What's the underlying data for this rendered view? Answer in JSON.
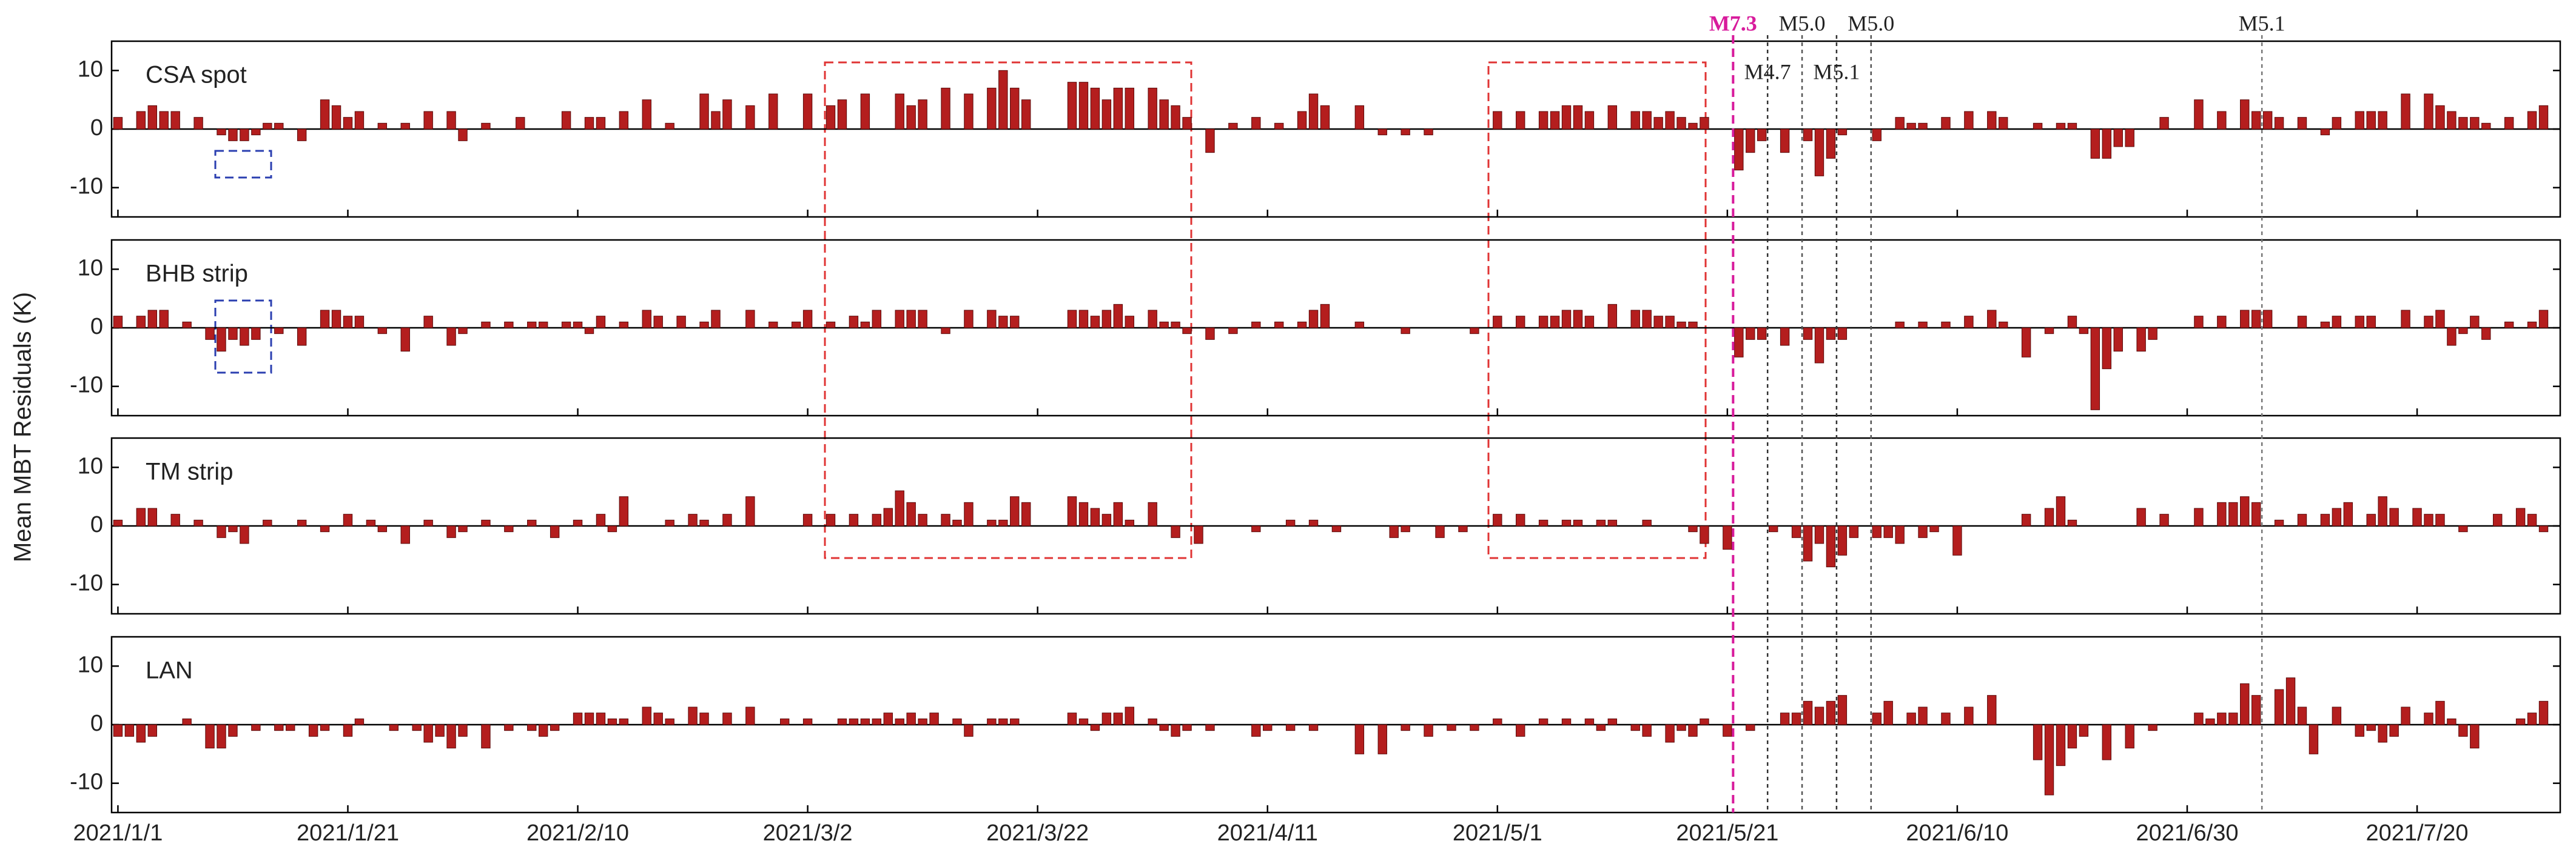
{
  "chart_data": {
    "type": "bar",
    "ylabel": "Mean MBT Residuals (K)",
    "ylim": [
      -15,
      15
    ],
    "yticks": [
      -10,
      0,
      10
    ],
    "categories": [
      "2021/1/1",
      null,
      null,
      null,
      null,
      null,
      null,
      null,
      null,
      null,
      null,
      null,
      null,
      null,
      null,
      null,
      null,
      null,
      null,
      null,
      "2021/1/21",
      null,
      null,
      null,
      null,
      null,
      null,
      null,
      null,
      null,
      null,
      null,
      null,
      null,
      null,
      null,
      null,
      null,
      null,
      null,
      "2021/2/10",
      null,
      null,
      null,
      null,
      null,
      null,
      null,
      null,
      null,
      null,
      null,
      null,
      null,
      null,
      null,
      null,
      null,
      null,
      null,
      "2021/3/2",
      null,
      null,
      null,
      null,
      null,
      null,
      null,
      null,
      null,
      null,
      null,
      null,
      null,
      null,
      null,
      null,
      null,
      null,
      null,
      "2021/3/22",
      null,
      null,
      null,
      null,
      null,
      null,
      null,
      null,
      null,
      null,
      null,
      null,
      null,
      null,
      null,
      null,
      null,
      null,
      null,
      "2021/4/11",
      null,
      null,
      null,
      null,
      null,
      null,
      null,
      null,
      null,
      null,
      null,
      null,
      null,
      null,
      null,
      null,
      null,
      null,
      null,
      "2021/5/1",
      null,
      null,
      null,
      null,
      null,
      null,
      null,
      null,
      null,
      null,
      null,
      null,
      null,
      null,
      null,
      null,
      null,
      null,
      null,
      "2021/5/21",
      null,
      null,
      null,
      null,
      null,
      null,
      null,
      null,
      null,
      null,
      null,
      null,
      null,
      null,
      null,
      null,
      null,
      null,
      null,
      "2021/6/10",
      null,
      null,
      null,
      null,
      null,
      null,
      null,
      null,
      null,
      null,
      null,
      null,
      null,
      null,
      null,
      null,
      null,
      null,
      null,
      "2021/6/30",
      null,
      null,
      null,
      null,
      null,
      null,
      null,
      null,
      null,
      null,
      null,
      null,
      null,
      null,
      null,
      null,
      null,
      null,
      null,
      "2021/7/20",
      null,
      null,
      null,
      null,
      null,
      null,
      null,
      null,
      null,
      null,
      null
    ],
    "series": [
      {
        "name": "CSA spot",
        "color": "#b41e1e",
        "values": [
          2,
          null,
          3,
          4,
          3,
          3,
          null,
          2,
          null,
          -1,
          -2,
          -2,
          -1,
          1,
          1,
          null,
          -2,
          null,
          5,
          4,
          2,
          3,
          null,
          1,
          null,
          1,
          null,
          3,
          null,
          3,
          -2,
          null,
          1,
          null,
          null,
          2,
          null,
          null,
          null,
          3,
          null,
          2,
          2,
          null,
          3,
          null,
          5,
          null,
          1,
          null,
          null,
          6,
          3,
          5,
          null,
          4,
          null,
          6,
          null,
          null,
          6,
          null,
          4,
          5,
          null,
          6,
          null,
          null,
          6,
          4,
          5,
          null,
          7,
          null,
          6,
          null,
          7,
          10,
          7,
          5,
          null,
          null,
          null,
          8,
          8,
          7,
          5,
          7,
          7,
          null,
          7,
          5,
          4,
          2,
          null,
          -4,
          null,
          1,
          null,
          2,
          null,
          1,
          null,
          3,
          6,
          4,
          null,
          null,
          4,
          null,
          -1,
          null,
          -1,
          null,
          -1,
          null,
          null,
          null,
          null,
          null,
          3,
          null,
          3,
          null,
          3,
          3,
          4,
          4,
          3,
          null,
          4,
          null,
          3,
          3,
          2,
          3,
          2,
          1,
          2,
          null,
          null,
          -7,
          -4,
          -2,
          null,
          -4,
          null,
          -2,
          -8,
          -5,
          -1,
          null,
          null,
          -2,
          null,
          2,
          1,
          1,
          null,
          2,
          null,
          3,
          null,
          3,
          2,
          null,
          null,
          1,
          null,
          1,
          1,
          null,
          -5,
          -5,
          -3,
          -3,
          null,
          null,
          2,
          null,
          null,
          5,
          null,
          3,
          null,
          5,
          3,
          3,
          2,
          null,
          2,
          null,
          -1,
          2,
          null,
          3,
          3,
          3,
          null,
          6,
          null,
          6,
          4,
          3,
          2,
          2,
          1,
          null,
          2,
          null,
          3,
          4
        ]
      },
      {
        "name": "BHB strip",
        "color": "#b41e1e",
        "values": [
          2,
          null,
          2,
          3,
          3,
          null,
          1,
          null,
          -2,
          -4,
          -2,
          -3,
          -2,
          null,
          -1,
          null,
          -3,
          null,
          3,
          3,
          2,
          2,
          null,
          -1,
          null,
          -4,
          null,
          2,
          null,
          -3,
          -1,
          null,
          1,
          null,
          1,
          null,
          1,
          1,
          null,
          1,
          1,
          -1,
          2,
          null,
          1,
          null,
          3,
          2,
          null,
          2,
          null,
          1,
          3,
          null,
          null,
          3,
          null,
          1,
          null,
          1,
          3,
          null,
          1,
          null,
          2,
          1,
          3,
          null,
          3,
          3,
          3,
          null,
          -1,
          null,
          3,
          null,
          3,
          2,
          2,
          null,
          null,
          null,
          null,
          3,
          3,
          2,
          3,
          4,
          2,
          null,
          3,
          1,
          1,
          -1,
          null,
          -2,
          null,
          -1,
          null,
          1,
          null,
          1,
          null,
          1,
          3,
          4,
          null,
          null,
          1,
          null,
          null,
          null,
          -1,
          null,
          null,
          null,
          null,
          null,
          -1,
          null,
          2,
          null,
          2,
          null,
          2,
          2,
          3,
          3,
          2,
          null,
          4,
          null,
          3,
          3,
          2,
          2,
          1,
          1,
          null,
          null,
          null,
          -5,
          -2,
          -2,
          null,
          -3,
          null,
          -2,
          -6,
          -2,
          -2,
          null,
          null,
          null,
          null,
          1,
          null,
          1,
          null,
          1,
          null,
          2,
          null,
          3,
          1,
          null,
          -5,
          null,
          -1,
          null,
          2,
          -1,
          -14,
          -7,
          -4,
          null,
          -4,
          -2,
          null,
          null,
          null,
          2,
          null,
          2,
          null,
          3,
          3,
          3,
          null,
          null,
          2,
          null,
          1,
          2,
          null,
          2,
          2,
          null,
          null,
          3,
          null,
          2,
          3,
          -3,
          -1,
          2,
          -2,
          null,
          1,
          null,
          1,
          3
        ]
      },
      {
        "name": "TM strip",
        "color": "#b41e1e",
        "values": [
          1,
          null,
          3,
          3,
          null,
          2,
          null,
          1,
          null,
          -2,
          -1,
          -3,
          null,
          1,
          null,
          null,
          1,
          null,
          -1,
          null,
          2,
          null,
          1,
          -1,
          null,
          -3,
          null,
          1,
          null,
          -2,
          -1,
          null,
          1,
          null,
          -1,
          null,
          1,
          null,
          -2,
          null,
          1,
          null,
          2,
          -1,
          5,
          null,
          null,
          null,
          1,
          null,
          2,
          1,
          null,
          2,
          null,
          5,
          null,
          null,
          null,
          null,
          2,
          null,
          2,
          null,
          2,
          null,
          2,
          3,
          6,
          4,
          2,
          null,
          2,
          1,
          4,
          null,
          1,
          1,
          5,
          4,
          null,
          null,
          null,
          5,
          4,
          3,
          2,
          4,
          1,
          null,
          4,
          null,
          -2,
          null,
          -3,
          null,
          null,
          null,
          null,
          -1,
          null,
          null,
          1,
          null,
          1,
          null,
          -1,
          null,
          null,
          null,
          null,
          -2,
          -1,
          null,
          null,
          -2,
          null,
          -1,
          null,
          null,
          2,
          null,
          2,
          null,
          1,
          null,
          1,
          1,
          null,
          1,
          1,
          null,
          null,
          1,
          null,
          null,
          null,
          -1,
          -3,
          null,
          -4,
          null,
          null,
          null,
          -1,
          null,
          -2,
          -6,
          -3,
          -7,
          -5,
          -2,
          null,
          -2,
          -2,
          -3,
          null,
          -2,
          -1,
          null,
          -5,
          null,
          null,
          null,
          null,
          null,
          2,
          null,
          3,
          5,
          1,
          null,
          null,
          null,
          null,
          null,
          3,
          null,
          2,
          null,
          null,
          3,
          null,
          4,
          4,
          5,
          4,
          null,
          1,
          null,
          2,
          null,
          2,
          3,
          4,
          null,
          2,
          5,
          3,
          null,
          3,
          2,
          2,
          null,
          -1,
          null,
          null,
          2,
          null,
          3,
          2,
          -1
        ]
      },
      {
        "name": "LAN",
        "color": "#b41e1e",
        "values": [
          -2,
          -2,
          -3,
          -2,
          null,
          null,
          1,
          null,
          -4,
          -4,
          -2,
          null,
          -1,
          null,
          -1,
          -1,
          null,
          -2,
          -1,
          null,
          -2,
          1,
          null,
          null,
          -1,
          null,
          -1,
          -3,
          -2,
          -4,
          -2,
          null,
          -4,
          null,
          -1,
          null,
          -1,
          -2,
          -1,
          null,
          2,
          2,
          2,
          1,
          1,
          null,
          3,
          2,
          1,
          null,
          3,
          2,
          null,
          2,
          null,
          3,
          null,
          null,
          1,
          null,
          1,
          null,
          null,
          1,
          1,
          1,
          1,
          2,
          1,
          2,
          1,
          2,
          null,
          1,
          -2,
          null,
          1,
          1,
          1,
          null,
          null,
          null,
          null,
          2,
          1,
          -1,
          2,
          2,
          3,
          null,
          1,
          -1,
          -2,
          -1,
          null,
          -1,
          null,
          null,
          null,
          -2,
          -1,
          null,
          -1,
          null,
          -1,
          null,
          null,
          null,
          -5,
          null,
          -5,
          null,
          -1,
          null,
          -2,
          null,
          -1,
          null,
          -1,
          null,
          1,
          null,
          -2,
          null,
          1,
          null,
          1,
          null,
          1,
          -1,
          1,
          null,
          -1,
          -2,
          null,
          -3,
          -1,
          -2,
          1,
          null,
          -2,
          null,
          -1,
          null,
          null,
          2,
          2,
          4,
          3,
          4,
          5,
          null,
          null,
          2,
          4,
          null,
          2,
          3,
          null,
          2,
          null,
          3,
          null,
          5,
          null,
          null,
          null,
          -6,
          -12,
          -7,
          -4,
          -2,
          null,
          -6,
          null,
          -4,
          null,
          -1,
          null,
          null,
          null,
          2,
          1,
          2,
          2,
          7,
          5,
          null,
          6,
          8,
          3,
          -5,
          null,
          3,
          null,
          -2,
          -1,
          -3,
          -2,
          3,
          null,
          2,
          4,
          1,
          -2,
          -4,
          null,
          0,
          null,
          1,
          2,
          4
        ]
      }
    ],
    "events": [
      {
        "label": "M7.3",
        "date": "2021/5/21",
        "color": "#d81b9c",
        "placement": "above"
      },
      {
        "label": "M4.7",
        "date": "2021/5/24",
        "color": "#333333",
        "placement": "inside"
      },
      {
        "label": "M5.0",
        "date": "2021/5/27",
        "color": "#555555",
        "placement": "above"
      },
      {
        "label": "M5.1",
        "date": "2021/5/30",
        "color": "#333333",
        "placement": "inside"
      },
      {
        "label": "M5.0",
        "date": "2021/6/2",
        "color": "#555555",
        "placement": "above"
      },
      {
        "label": "M5.1",
        "date": "2021/7/6",
        "color": "#777777",
        "placement": "above"
      }
    ]
  }
}
